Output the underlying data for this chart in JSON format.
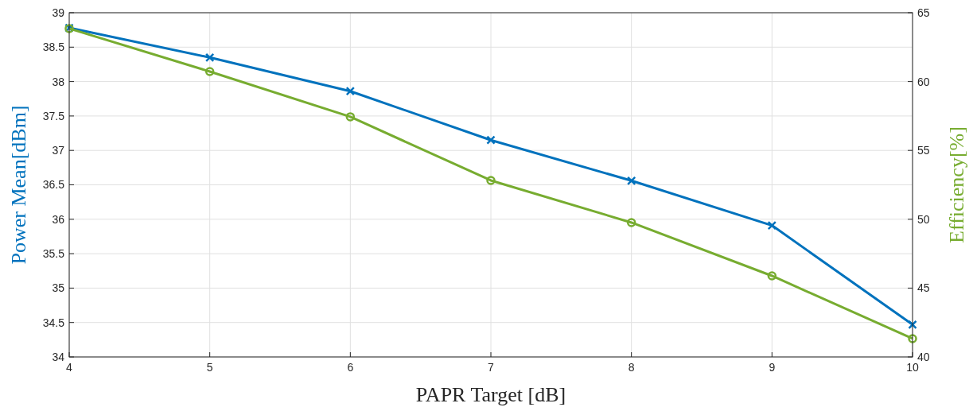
{
  "chart_data": {
    "type": "line",
    "xlabel": "PAPR Target [dB]",
    "ylabel": "Power Mean[dBm]",
    "y2label": "Efficiency[%]",
    "x": [
      4,
      5,
      6,
      7,
      8,
      9,
      10
    ],
    "series": [
      {
        "color": "#0072bd",
        "marker": "cross",
        "values": [
          38.78,
          38.35,
          37.86,
          37.15,
          36.56,
          35.91,
          34.47
        ]
      },
      {
        "color": "#77ac30",
        "marker": "circle",
        "axis": "y2",
        "values": [
          63.85,
          60.73,
          57.44,
          52.82,
          49.76,
          45.89,
          41.33
        ]
      }
    ],
    "xlim": [
      4,
      10
    ],
    "xticks": [
      4,
      5,
      6,
      7,
      8,
      9,
      10
    ],
    "ylim": [
      34,
      39
    ],
    "yticks": [
      34,
      34.5,
      35,
      35.5,
      36,
      36.5,
      37,
      37.5,
      38,
      38.5,
      39
    ],
    "y2lim": [
      40,
      65
    ],
    "y2ticks": [
      40,
      45,
      50,
      55,
      60,
      65
    ],
    "grid": true,
    "line_style": "solid"
  }
}
